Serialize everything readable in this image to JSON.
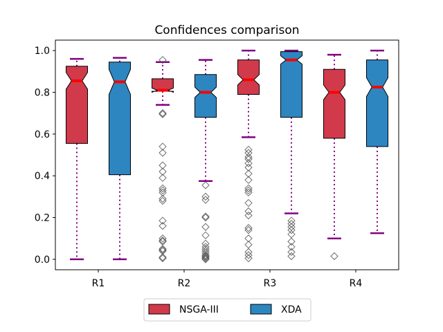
{
  "chart_data": {
    "type": "boxplot",
    "title": "Confidences comparison",
    "xlabel": "",
    "ylabel": "",
    "categories": [
      "R1",
      "R2",
      "R3",
      "R4"
    ],
    "ylim": [
      -0.05,
      1.05
    ],
    "yticks": [
      0.0,
      0.2,
      0.4,
      0.6,
      0.8,
      1.0
    ],
    "ytick_labels": [
      "0.0",
      "0.2",
      "0.4",
      "0.6",
      "0.8",
      "1.0"
    ],
    "notched": true,
    "grid": false,
    "legend_position": "bottom-center",
    "series": [
      {
        "name": "NSGA-III",
        "color": "#d13a4b",
        "boxes": [
          {
            "whisker_low": 0.0,
            "q1": 0.555,
            "median": 0.855,
            "q3": 0.925,
            "whisker_high": 0.96,
            "notch_low": 0.815,
            "notch_high": 0.895,
            "outliers": []
          },
          {
            "whisker_low": 0.74,
            "q1": 0.805,
            "median": 0.81,
            "q3": 0.865,
            "whisker_high": 0.945,
            "notch_low": 0.8,
            "notch_high": 0.82,
            "outliers": [
              0.955,
              0.7,
              0.695,
              0.54,
              0.51,
              0.45,
              0.42,
              0.39,
              0.34,
              0.33,
              0.32,
              0.29,
              0.28,
              0.185,
              0.16,
              0.1,
              0.09,
              0.085,
              0.05,
              0.045,
              0.04,
              0.01,
              0.005
            ]
          },
          {
            "whisker_low": 0.585,
            "q1": 0.79,
            "median": 0.86,
            "q3": 0.955,
            "whisker_high": 1.0,
            "notch_low": 0.835,
            "notch_high": 0.885,
            "outliers": [
              0.525,
              0.51,
              0.49,
              0.48,
              0.46,
              0.44,
              0.41,
              0.38,
              0.34,
              0.33,
              0.32,
              0.27,
              0.23,
              0.21,
              0.15,
              0.14,
              0.1,
              0.07,
              0.035,
              0.02,
              0.005
            ]
          },
          {
            "whisker_low": 0.1,
            "q1": 0.58,
            "median": 0.8,
            "q3": 0.91,
            "whisker_high": 0.98,
            "notch_low": 0.765,
            "notch_high": 0.835,
            "outliers": [
              0.015
            ]
          }
        ]
      },
      {
        "name": "XDA",
        "color": "#2e86c1",
        "boxes": [
          {
            "whisker_low": 0.0,
            "q1": 0.405,
            "median": 0.85,
            "q3": 0.945,
            "whisker_high": 0.965,
            "notch_low": 0.79,
            "notch_high": 0.91,
            "outliers": []
          },
          {
            "whisker_low": 0.375,
            "q1": 0.68,
            "median": 0.8,
            "q3": 0.885,
            "whisker_high": 0.955,
            "notch_low": 0.775,
            "notch_high": 0.825,
            "outliers": [
              0.355,
              0.3,
              0.285,
              0.205,
              0.2,
              0.155,
              0.115,
              0.075,
              0.06,
              0.05,
              0.04,
              0.03,
              0.02,
              0.015,
              0.01,
              0.005,
              0.0
            ]
          },
          {
            "whisker_low": 0.22,
            "q1": 0.68,
            "median": 0.955,
            "q3": 0.995,
            "whisker_high": 1.0,
            "notch_low": 0.935,
            "notch_high": 0.975,
            "outliers": [
              0.185,
              0.17,
              0.155,
              0.14,
              0.12,
              0.085,
              0.06,
              0.035,
              0.015
            ]
          },
          {
            "whisker_low": 0.125,
            "q1": 0.54,
            "median": 0.825,
            "q3": 0.955,
            "whisker_high": 1.0,
            "notch_low": 0.78,
            "notch_high": 0.87,
            "outliers": []
          }
        ]
      }
    ],
    "style": {
      "median_color": "#ff0000",
      "whisker_color": "#800080",
      "outlier_color": "#555555"
    }
  }
}
